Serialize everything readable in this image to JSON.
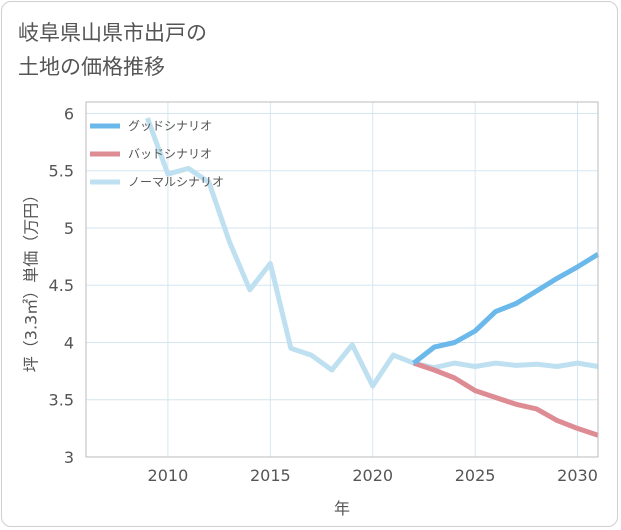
{
  "chart_data": {
    "type": "line",
    "title": "岐阜県山県市出戸の\n土地の価格推移",
    "xlabel": "年",
    "ylabel": "坪（3.3㎡）単価（万円）",
    "xlim": [
      2006,
      2031
    ],
    "ylim": [
      3,
      6.1
    ],
    "xticks": [
      2010,
      2015,
      2020,
      2025,
      2030
    ],
    "yticks": [
      3,
      3.5,
      4,
      4.5,
      5,
      5.5,
      6
    ],
    "ytick_labels": [
      "3",
      "3.5",
      "4",
      "4.5",
      "5",
      "5.5",
      "6"
    ],
    "grid": true,
    "legend_position": "top-left",
    "series": [
      {
        "name": "グッドシナリオ",
        "color": "#6bb8ea",
        "x": [
          2022,
          2023,
          2024,
          2025,
          2026,
          2027,
          2028,
          2029,
          2030,
          2031
        ],
        "y": [
          3.82,
          3.96,
          4.0,
          4.1,
          4.27,
          4.34,
          4.45,
          4.56,
          4.66,
          4.77
        ]
      },
      {
        "name": "バッドシナリオ",
        "color": "#de8c94",
        "x": [
          2022,
          2023,
          2024,
          2025,
          2026,
          2027,
          2028,
          2029,
          2030,
          2031
        ],
        "y": [
          3.82,
          3.76,
          3.69,
          3.58,
          3.52,
          3.46,
          3.42,
          3.32,
          3.25,
          3.19
        ]
      },
      {
        "name": "ノーマルシナリオ",
        "color": "#bfe0f0",
        "x": [
          2009,
          2010,
          2011,
          2012,
          2013,
          2014,
          2015,
          2016,
          2017,
          2018,
          2019,
          2020,
          2021,
          2022,
          2023,
          2024,
          2025,
          2026,
          2027,
          2028,
          2029,
          2030,
          2031
        ],
        "y": [
          5.96,
          5.47,
          5.52,
          5.4,
          4.88,
          4.46,
          4.69,
          3.95,
          3.89,
          3.76,
          3.98,
          3.62,
          3.89,
          3.82,
          3.78,
          3.82,
          3.79,
          3.82,
          3.8,
          3.81,
          3.79,
          3.82,
          3.79
        ]
      }
    ]
  }
}
